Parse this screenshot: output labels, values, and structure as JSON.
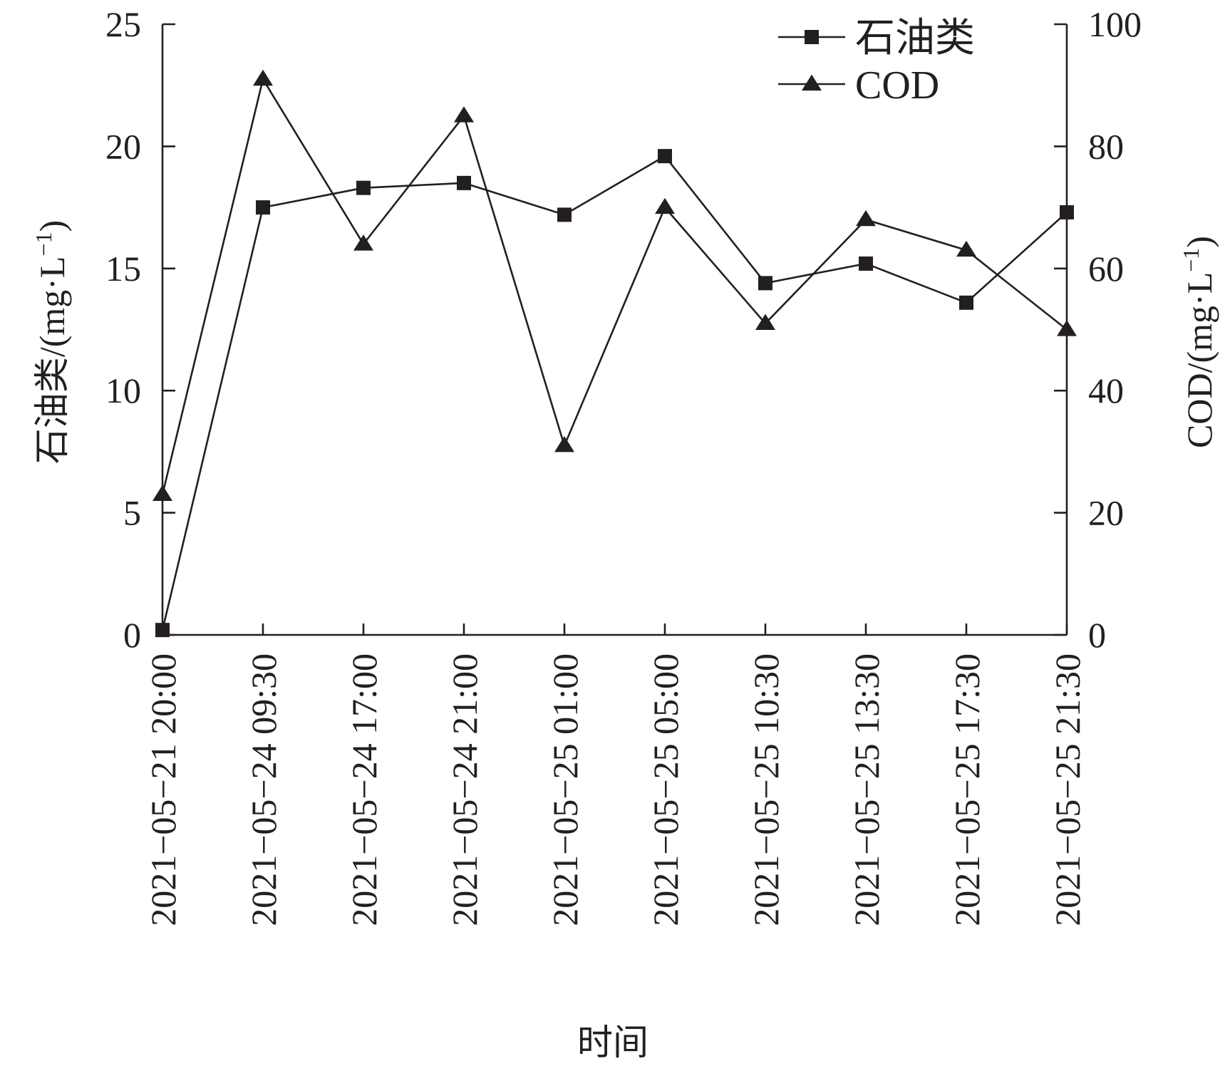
{
  "chart_data": {
    "type": "line",
    "title": "",
    "xlabel": "时间",
    "ylabel": "石油类/(mg·L",
    "ylabel_sup": "−1",
    "ylabel_close": ")",
    "y2label": "COD/(mg·L",
    "y2label_sup": "−1",
    "y2label_close": ")",
    "categories": [
      "2021−05−21 20:00",
      "2021−05−24 09:30",
      "2021−05−24 17:00",
      "2021−05−24 21:00",
      "2021−05−25 01:00",
      "2021−05−25 05:00",
      "2021−05−25 10:30",
      "2021−05−25 13:30",
      "2021−05−25 17:30",
      "2021−05−25 21:30"
    ],
    "ylim": [
      0,
      25
    ],
    "yticks": [
      "0",
      "5",
      "10",
      "15",
      "20",
      "25"
    ],
    "y2lim": [
      0,
      100
    ],
    "y2ticks": [
      "0",
      "20",
      "40",
      "60",
      "80",
      "100"
    ],
    "grid": false,
    "legend_position": "top-right",
    "series": [
      {
        "name": "石油类",
        "axis": "left",
        "marker": "square",
        "values": [
          0.2,
          17.5,
          18.3,
          18.5,
          17.2,
          19.6,
          14.4,
          15.2,
          13.6,
          17.3
        ]
      },
      {
        "name": "COD",
        "axis": "right",
        "marker": "triangle",
        "values": [
          23,
          91,
          64,
          85,
          31,
          70,
          51,
          68,
          63,
          50
        ]
      }
    ],
    "colors": {
      "line": "#231f20",
      "marker": "#231f20"
    }
  }
}
